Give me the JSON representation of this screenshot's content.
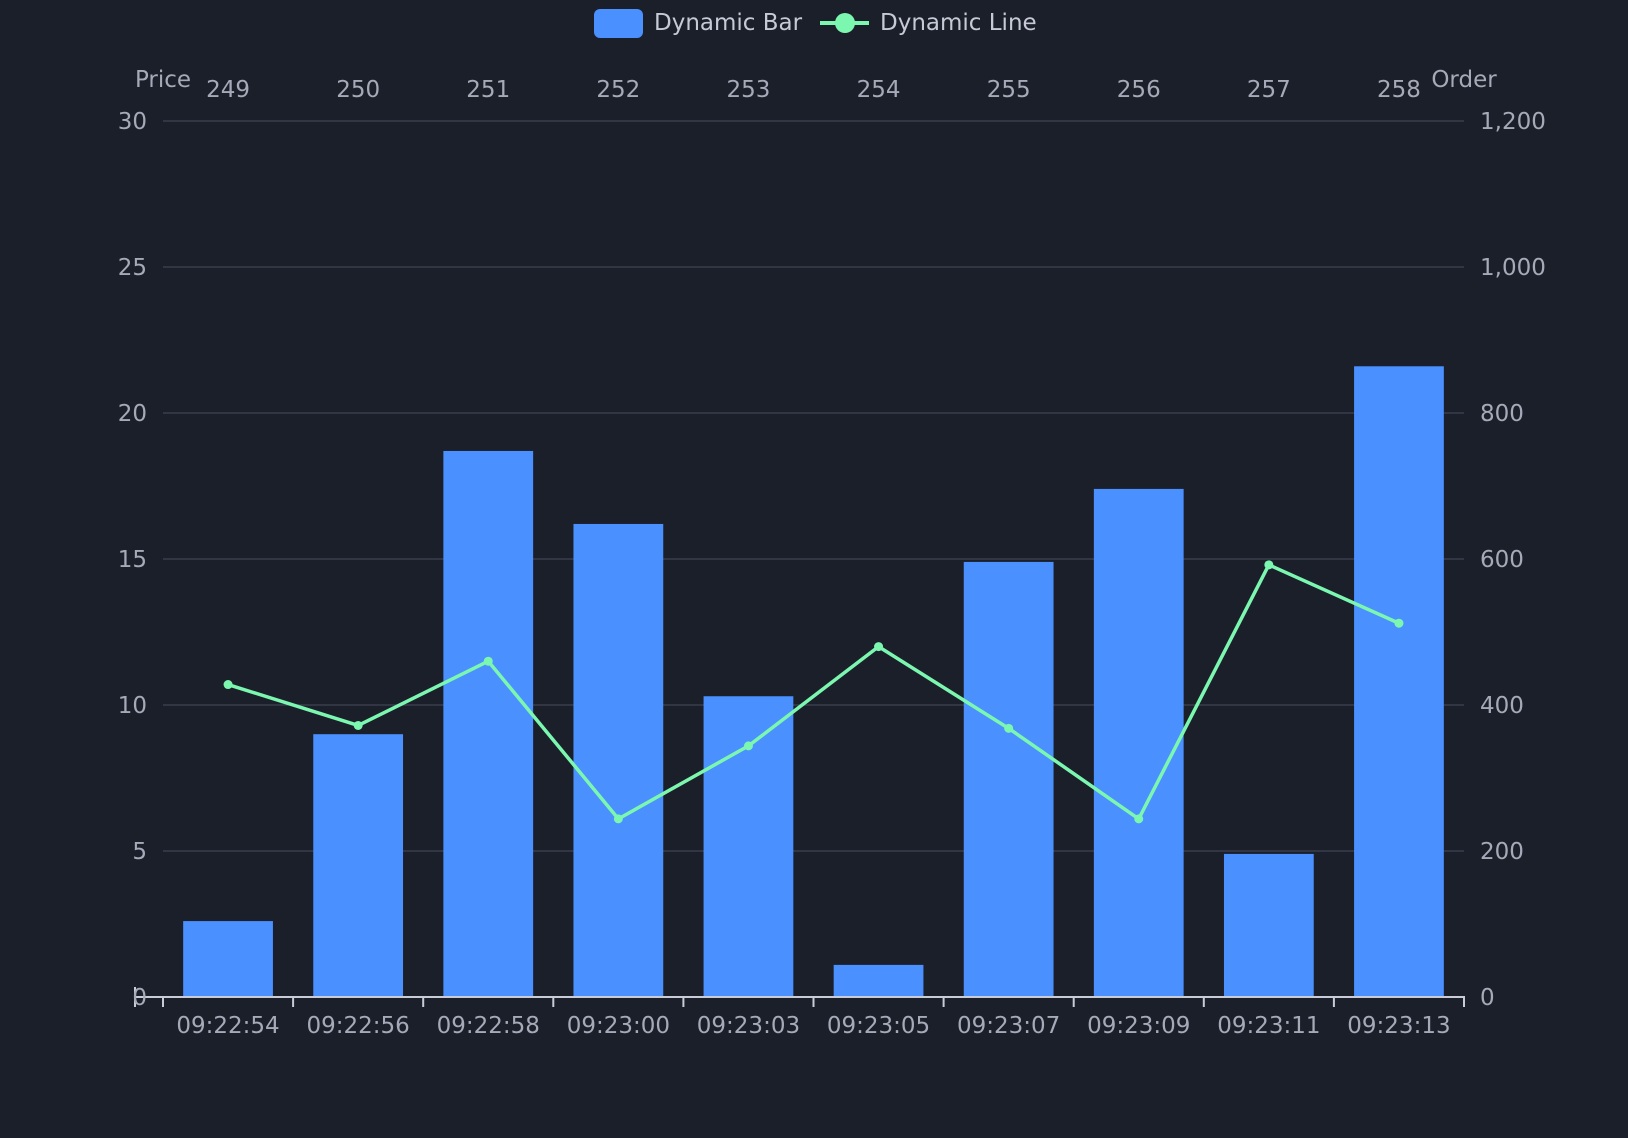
{
  "chart_data": {
    "type": "bar",
    "legend": {
      "placement": "top-center",
      "items": [
        {
          "label": "Dynamic Bar",
          "symbol": "rounded-rect",
          "color": "#4a90ff"
        },
        {
          "label": "Dynamic Line",
          "symbol": "line-circle",
          "color": "#7bf7b0"
        }
      ]
    },
    "categories": [
      "09:22:54",
      "09:22:56",
      "09:22:58",
      "09:23:00",
      "09:23:03",
      "09:23:05",
      "09:23:07",
      "09:23:09",
      "09:23:11",
      "09:23:13"
    ],
    "top_categories": [
      "249",
      "250",
      "251",
      "252",
      "253",
      "254",
      "255",
      "256",
      "257",
      "258"
    ],
    "y_left": {
      "label": "Price",
      "range": [
        0,
        30
      ],
      "ticks": [
        "0",
        "5",
        "10",
        "15",
        "20",
        "25",
        "30"
      ],
      "tick_values": [
        0,
        5,
        10,
        15,
        20,
        25,
        30
      ]
    },
    "y_right": {
      "label": "Order",
      "range": [
        0,
        1200
      ],
      "ticks": [
        "0",
        "200",
        "400",
        "600",
        "800",
        "1,000",
        "1,200"
      ],
      "tick_values": [
        0,
        200,
        400,
        600,
        800,
        1000,
        1200
      ]
    },
    "series": [
      {
        "name": "Dynamic Bar",
        "type": "bar",
        "axis": "left",
        "color": "#4a90ff",
        "values": [
          2.6,
          9.0,
          18.7,
          16.2,
          10.3,
          1.1,
          14.9,
          17.4,
          4.9,
          21.6
        ]
      },
      {
        "name": "Dynamic Line",
        "type": "line",
        "axis": "left",
        "color": "#7bf7b0",
        "values": [
          10.7,
          9.3,
          11.5,
          6.1,
          8.6,
          12.0,
          9.2,
          6.1,
          14.8,
          12.8
        ]
      }
    ],
    "grid": true,
    "colors": {
      "background": "#1b1f2a",
      "grid": "#3a3f4c",
      "axis": "#c9ccd6",
      "text": "#a5a9b8"
    }
  }
}
